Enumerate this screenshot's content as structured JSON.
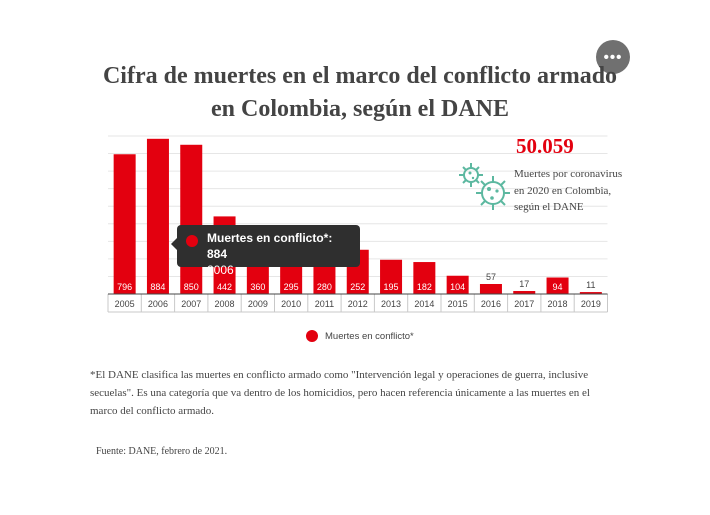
{
  "menu": {
    "more_label": "•••"
  },
  "chart_data": {
    "type": "bar",
    "title": "Cifra de muertes en el marco del conflicto armado en Colombia, según el DANE",
    "categories": [
      "2005",
      "2006",
      "2007",
      "2008",
      "2009",
      "2010",
      "2011",
      "2012",
      "2013",
      "2014",
      "2015",
      "2016",
      "2017",
      "2018",
      "2019"
    ],
    "series": [
      {
        "name": "Muertes en conflicto*",
        "color": "#e3000f",
        "values": [
          796,
          884,
          850,
          442,
          360,
          295,
          280,
          252,
          195,
          182,
          104,
          57,
          17,
          94,
          11
        ]
      }
    ],
    "ylim": [
      0,
      900
    ],
    "grid": true,
    "legend_position": "bottom"
  },
  "callout": {
    "value": "50.059",
    "text": "Muertes por coronavirus en 2020 en Colombia, según el DANE",
    "icon": "coronavirus-icon",
    "icon_color": "#5cb8a0"
  },
  "tooltip": {
    "line1": "Muertes en conflicto*: 884",
    "line2": "2006"
  },
  "footnote": "*El DANE clasifica las muertes en conflicto armado como \"Intervención legal y operaciones de guerra, inclusive secuelas\". Es una categoría que va dentro de los homicidios, pero hacen referencia únicamente a las muertes en el marco del conflicto armado.",
  "source": "Fuente: DANE, febrero de 2021."
}
